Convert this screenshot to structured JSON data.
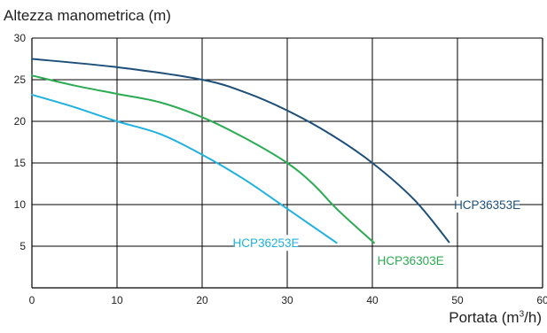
{
  "chart_data": {
    "type": "line",
    "ylabel": "Altezza manometrica (m)",
    "xlabel_main": "Portata (m",
    "xlabel_sup": "3",
    "xlabel_end": "/h)",
    "xlim": [
      0,
      60
    ],
    "ylim": [
      0,
      30
    ],
    "xticks": [
      0,
      10,
      20,
      30,
      40,
      50,
      60
    ],
    "yticks": [
      5,
      10,
      15,
      20,
      25,
      30
    ],
    "grid": true,
    "series": [
      {
        "name": "HCP36353E",
        "color": "#1d4f7a",
        "x": [
          0,
          10,
          20,
          25,
          30,
          35,
          40,
          45,
          49
        ],
        "y": [
          27.5,
          26.5,
          25.0,
          23.5,
          21.3,
          18.5,
          15.0,
          10.5,
          5.5
        ]
      },
      {
        "name": "HCP36303E",
        "color": "#2bab52",
        "x": [
          0,
          5,
          10,
          15,
          20,
          25,
          30,
          33,
          36,
          40.2
        ],
        "y": [
          25.5,
          24.3,
          23.3,
          22.3,
          20.5,
          18.0,
          15.0,
          12.5,
          9.3,
          5.4
        ]
      },
      {
        "name": "HCP36253E",
        "color": "#1fb1e0",
        "x": [
          0,
          5,
          10,
          15,
          20,
          25,
          30,
          35.8
        ],
        "y": [
          23.2,
          21.7,
          20.0,
          18.5,
          16.0,
          13.0,
          9.5,
          5.4
        ]
      }
    ]
  }
}
